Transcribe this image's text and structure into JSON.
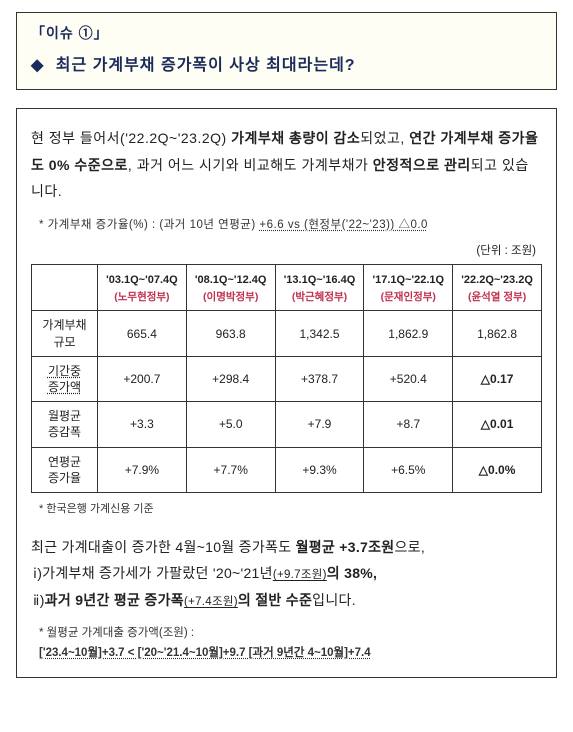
{
  "header": {
    "issue_label": "「이슈 ①」",
    "title": "최근 가계부채 증가폭이 사상 최대라는데?"
  },
  "para1": {
    "t1": "현 정부 들어서('22.2Q~'23.2Q) ",
    "b1": "가계부채 총량이 감소",
    "t2": "되었고, ",
    "b2": "연간 가계부채 증가율도 0% 수준으로",
    "t3": ", 과거 어느 시기와 비교해도 가계부채가 ",
    "b3": "안정적으로 관리",
    "t4": "되고 있습니다."
  },
  "note1": {
    "pre": "* 가계부채 증가율(%) : (과거 10년 연평균) ",
    "raw": "+6.6  vs (현정부('22~'23)) △0.0"
  },
  "unit": "(단위 : 조원)",
  "table": {
    "periods": [
      "'03.1Q~'07.4Q",
      "'08.1Q~'12.4Q",
      "'13.1Q~'16.4Q",
      "'17.1Q~'22.1Q",
      "'22.2Q~'23.2Q"
    ],
    "govs": [
      "(노무현정부)",
      "(이명박정부)",
      "(박근혜정부)",
      "(문재인정부)",
      "(윤석열 정부)"
    ],
    "row_labels": {
      "size": "가계부채\n규모",
      "inc": "기간중\n증가액",
      "mavg": "월평균\n증감폭",
      "yrate": "연평균\n증가율"
    },
    "rows": {
      "size": [
        "665.4",
        "963.8",
        "1,342.5",
        "1,862.9",
        "1,862.8"
      ],
      "inc": [
        "+200.7",
        "+298.4",
        "+378.7",
        "+520.4",
        "△0.17"
      ],
      "mavg": [
        "+3.3",
        "+5.0",
        "+7.9",
        "+8.7",
        "△0.01"
      ],
      "yrate": [
        "+7.9%",
        "+7.7%",
        "+9.3%",
        "+6.5%",
        "△0.0%"
      ]
    }
  },
  "foot": "* 한국은행 가계신용 기준",
  "para2": {
    "l1a": "최근 가계대출이 증가한 4월~10월 증가폭도 ",
    "l1b": "월평균 +3.7조원",
    "l1c": "으로,",
    "l2a": "ⅰ)가계부채 증가세가 가팔랐던 '20~'21년",
    "l2small": "(+9.7조원)",
    "l2b": "의 38%,",
    "l3a": "ⅱ)",
    "l3b": "과거 9년간 평균 증가폭",
    "l3small": "(+7.4조원)",
    "l3c": "의 절반 수준",
    "l3d": "입니다."
  },
  "note2": {
    "label": "* 월평균 가계대출 증가액(조원) :",
    "seq_raw": "['23.4~10월]+3.7 < ['20~'21.4~10월]+9.7  [과거 9년간 4~10월]+7.4"
  }
}
